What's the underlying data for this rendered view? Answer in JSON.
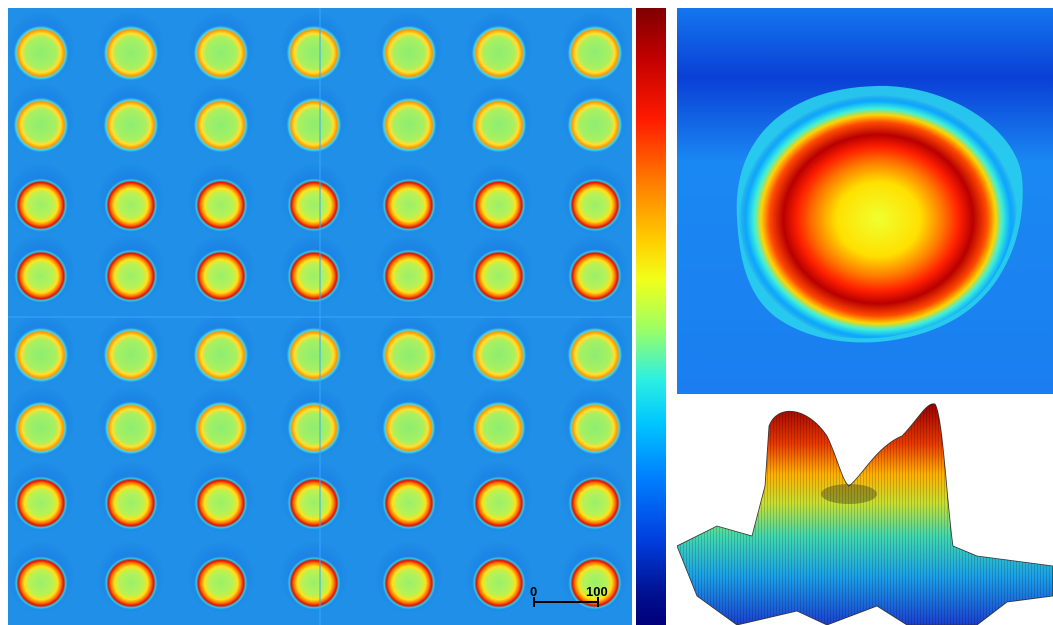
{
  "grid": {
    "rows": 8,
    "cols": 7,
    "background_color": "#1f8fe8"
  },
  "scale_bar": {
    "start_label": "0",
    "end_label": "100"
  },
  "colorbar": {
    "colormap": "jet",
    "top_color": "#7f0000",
    "bottom_color": "#00007a"
  },
  "heatmap": {
    "description_colors": [
      "#0b3fd6",
      "#1ea0ff",
      "#ff3300",
      "#b30000",
      "#f0ff30"
    ]
  }
}
